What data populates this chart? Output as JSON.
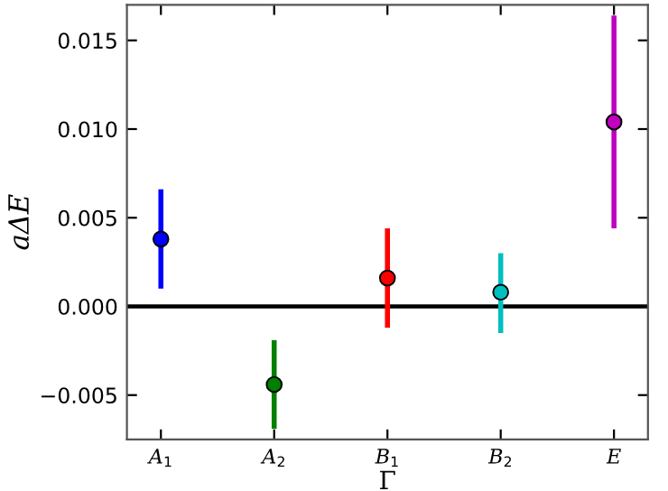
{
  "chart_data": {
    "type": "scatter",
    "xlabel": "Γ",
    "ylabel": "aΔE",
    "categories": [
      "A$_{1}$",
      "A$_{2}$",
      "B$_{1}$",
      "B$_{2}$",
      "E"
    ],
    "values": [
      0.0038,
      -0.0044,
      0.0016,
      0.0008,
      0.0104
    ],
    "errors": [
      [
        0.001,
        0.0066
      ],
      [
        -0.0069,
        -0.0019
      ],
      [
        -0.0012,
        0.0044
      ],
      [
        -0.0015,
        0.003
      ],
      [
        0.0044,
        0.0164
      ]
    ],
    "colors": [
      "#0000ff",
      "#007f00",
      "#ff0000",
      "#00bfbf",
      "#bf00bf"
    ],
    "marker": "circle",
    "ylim": [
      -0.0075,
      0.017
    ],
    "yticks": [
      {
        "value": -0.005,
        "label": "−0.005"
      },
      {
        "value": 0,
        "label": "0.000"
      },
      {
        "value": 0.005,
        "label": "0.005"
      },
      {
        "value": 0.01,
        "label": "0.010"
      },
      {
        "value": 0.015,
        "label": "0.015"
      }
    ],
    "ref_lines": [
      {
        "axis": "y",
        "value": 0,
        "color": "#000000"
      }
    ],
    "grid": false,
    "legend": false
  }
}
